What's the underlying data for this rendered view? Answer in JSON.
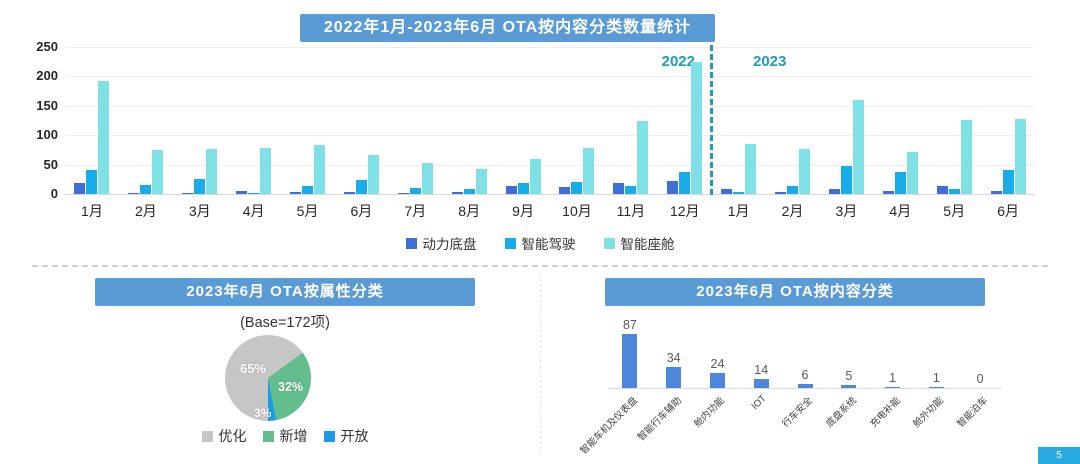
{
  "page": {
    "page_number": "5"
  },
  "theme": {
    "header_bg": "#5B9BD5",
    "header_text": "#FFFFFF",
    "year_accent": "#1E9CBE",
    "grid_color": "#EFEFEF",
    "badge_bg": "#29ABE2"
  },
  "chart_data": [
    {
      "id": "monthly-ota-by-content",
      "type": "bar",
      "title": "2022年1月-2023年6月 OTA按内容分类数量统计",
      "categories": [
        "1月",
        "2月",
        "3月",
        "4月",
        "5月",
        "6月",
        "7月",
        "8月",
        "9月",
        "10月",
        "11月",
        "12月",
        "1月",
        "2月",
        "3月",
        "4月",
        "5月",
        "6月"
      ],
      "year_labels": [
        "2022",
        "2023"
      ],
      "year_divider_after_index": 11,
      "series": [
        {
          "name": "动力底盘",
          "color": "#3E6FD8",
          "values": [
            18,
            2,
            2,
            5,
            3,
            3,
            1,
            3,
            13,
            12,
            18,
            22,
            8,
            3,
            8,
            5,
            14,
            5
          ]
        },
        {
          "name": "智能驾驶",
          "color": "#18ADE8",
          "values": [
            40,
            15,
            26,
            2,
            14,
            23,
            11,
            8,
            18,
            20,
            13,
            38,
            4,
            14,
            48,
            38,
            9,
            40
          ]
        },
        {
          "name": "智能座舱",
          "color": "#7FE0E6",
          "values": [
            192,
            75,
            77,
            78,
            84,
            67,
            52,
            42,
            60,
            78,
            125,
            225,
            85,
            77,
            160,
            72,
            126,
            127
          ]
        }
      ],
      "ylim": [
        0,
        250
      ],
      "yticks": [
        0,
        50,
        100,
        150,
        200,
        250
      ],
      "grid": true,
      "legend_position": "bottom"
    },
    {
      "id": "june-2023-ota-by-attribute",
      "type": "pie",
      "title": "2023年6月 OTA按属性分类",
      "subtitle": "(Base=172项)",
      "slices": [
        {
          "label": "优化",
          "value": 65,
          "pct_label": "65%",
          "color": "#C6C6C6"
        },
        {
          "label": "新增",
          "value": 32,
          "pct_label": "32%",
          "color": "#63BD8C"
        },
        {
          "label": "开放",
          "value": 3,
          "pct_label": "3%",
          "color": "#1A9BE5"
        }
      ],
      "legend_position": "bottom"
    },
    {
      "id": "june-2023-ota-by-content",
      "type": "bar",
      "title": "2023年6月 OTA按内容分类",
      "categories": [
        "智能车机及仪表盘",
        "智能行车辅助",
        "舱内功能",
        "IOT",
        "行车安全",
        "底盘系统",
        "充电补能",
        "舱外功能",
        "智能泊车"
      ],
      "values": [
        87,
        34,
        24,
        14,
        6,
        5,
        1,
        1,
        0
      ],
      "bar_color": "#4D86DB",
      "data_labels": true,
      "ylim": [
        0,
        90
      ]
    }
  ]
}
